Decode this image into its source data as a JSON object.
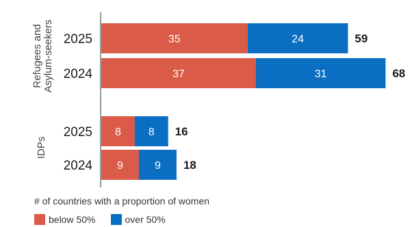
{
  "chart_data": {
    "type": "bar",
    "orientation": "horizontal",
    "stacked": true,
    "groups": [
      {
        "name": "Refugees and\nAsylum-seekers",
        "rows": [
          {
            "year": "2025",
            "values": [
              35,
              24
            ],
            "total": 59
          },
          {
            "year": "2024",
            "values": [
              37,
              31
            ],
            "total": 68
          }
        ]
      },
      {
        "name": "IDPs",
        "rows": [
          {
            "year": "2025",
            "values": [
              8,
              8
            ],
            "total": 16
          },
          {
            "year": "2024",
            "values": [
              9,
              9
            ],
            "total": 18
          }
        ]
      }
    ],
    "series": [
      {
        "name": "below 50%",
        "color": "#d95b48"
      },
      {
        "name": "over 50%",
        "color": "#0a6fc2"
      }
    ],
    "note": "# of countries with a proportion of women",
    "xlim": [
      0,
      74
    ],
    "grid": false,
    "legend_position": "bottom-left"
  }
}
